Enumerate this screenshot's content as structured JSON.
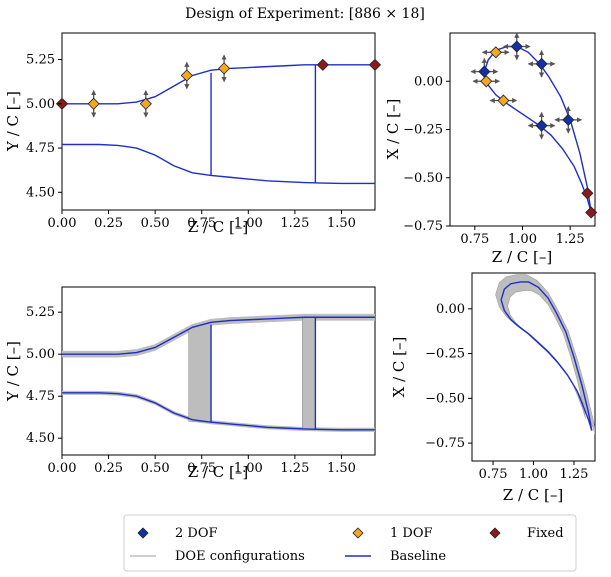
{
  "figure": {
    "title": "Design of Experiment: [886 × 18]"
  },
  "colors": {
    "baseline": "#1f2fc4",
    "doe": "#bdbdbd",
    "two_dof": "#1230a8",
    "one_dof": "#f5a623",
    "fixed": "#8b1a1a",
    "arrow": "#555555"
  },
  "legend": {
    "items": [
      {
        "label": "2 DOF",
        "kind": "diamond",
        "color": "#1230a8"
      },
      {
        "label": "1 DOF",
        "kind": "diamond",
        "color": "#f5a623"
      },
      {
        "label": "Fixed",
        "kind": "diamond",
        "color": "#8b1a1a"
      },
      {
        "label": "DOE configurations",
        "kind": "line",
        "color": "#bdbdbd"
      },
      {
        "label": "Baseline",
        "kind": "line",
        "color": "#1f2fc4"
      }
    ]
  },
  "chart_data": [
    {
      "type": "line",
      "panel": "top-left",
      "xlabel": "Z / C [–]",
      "ylabel": "Y / C [–]",
      "xlim": [
        0,
        1.68
      ],
      "ylim": [
        4.4,
        5.4
      ],
      "xticks": [
        "0.00",
        "0.25",
        "0.50",
        "0.75",
        "1.00",
        "1.25",
        "1.50"
      ],
      "yticks": [
        "4.50",
        "4.75",
        "5.00",
        "5.25"
      ],
      "series": [
        {
          "role": "baseline-upper",
          "x": [
            0,
            0.1,
            0.2,
            0.3,
            0.4,
            0.5,
            0.6,
            0.7,
            0.8,
            0.9,
            1.0,
            1.1,
            1.2,
            1.3,
            1.4,
            1.5,
            1.68
          ],
          "y": [
            5.0,
            5.0,
            5.0,
            5.0,
            5.01,
            5.04,
            5.1,
            5.16,
            5.19,
            5.2,
            5.205,
            5.21,
            5.215,
            5.22,
            5.22,
            5.22,
            5.22
          ]
        },
        {
          "role": "baseline-lower",
          "x": [
            0,
            0.1,
            0.2,
            0.3,
            0.4,
            0.5,
            0.6,
            0.7,
            0.8,
            0.9,
            1.0,
            1.1,
            1.2,
            1.3,
            1.4,
            1.5,
            1.68
          ],
          "y": [
            4.77,
            4.77,
            4.77,
            4.765,
            4.75,
            4.71,
            4.65,
            4.61,
            4.595,
            4.585,
            4.575,
            4.565,
            4.56,
            4.555,
            4.552,
            4.55,
            4.55
          ]
        },
        {
          "role": "baseline-vline",
          "x": [
            0.8,
            0.8
          ],
          "y": [
            4.595,
            5.175
          ]
        },
        {
          "role": "baseline-vline",
          "x": [
            1.36,
            1.36
          ],
          "y": [
            4.553,
            5.22
          ]
        }
      ],
      "control_points": [
        {
          "x": 0.0,
          "y": 5.0,
          "dof": "fixed"
        },
        {
          "x": 0.17,
          "y": 5.0,
          "dof": "1"
        },
        {
          "x": 0.45,
          "y": 5.0,
          "dof": "1"
        },
        {
          "x": 0.67,
          "y": 5.16,
          "dof": "1"
        },
        {
          "x": 0.87,
          "y": 5.2,
          "dof": "1"
        },
        {
          "x": 1.4,
          "y": 5.22,
          "dof": "fixed"
        },
        {
          "x": 1.68,
          "y": 5.22,
          "dof": "fixed"
        }
      ]
    },
    {
      "type": "line",
      "panel": "top-right",
      "xlabel": "Z / C [–]",
      "ylabel": "X / C [–]",
      "xlim": [
        0.62,
        1.38
      ],
      "ylim": [
        -0.75,
        0.25
      ],
      "xticks": [
        "0.75",
        "1.00",
        "1.25"
      ],
      "yticks": [
        "0.00",
        "-0.25",
        "-0.50",
        "-0.75"
      ],
      "series": [
        {
          "role": "baseline-suction",
          "x": [
            0.8,
            0.82,
            0.86,
            0.92,
            0.97,
            1.03,
            1.09,
            1.14,
            1.2,
            1.25,
            1.3,
            1.34,
            1.36
          ],
          "y": [
            0.05,
            0.11,
            0.16,
            0.18,
            0.18,
            0.15,
            0.09,
            0.02,
            -0.08,
            -0.2,
            -0.37,
            -0.55,
            -0.68
          ]
        },
        {
          "role": "baseline-pressure",
          "x": [
            0.8,
            0.82,
            0.86,
            0.91,
            0.97,
            1.03,
            1.09,
            1.15,
            1.21,
            1.27,
            1.31,
            1.34,
            1.36
          ],
          "y": [
            0.05,
            -0.02,
            -0.07,
            -0.11,
            -0.15,
            -0.19,
            -0.23,
            -0.28,
            -0.35,
            -0.44,
            -0.53,
            -0.61,
            -0.68
          ]
        }
      ],
      "control_points": [
        {
          "x": 0.8,
          "y": 0.05,
          "dof": "2"
        },
        {
          "x": 0.81,
          "y": 0.0,
          "dof": "1"
        },
        {
          "x": 0.86,
          "y": 0.15,
          "dof": "1"
        },
        {
          "x": 0.97,
          "y": 0.18,
          "dof": "2"
        },
        {
          "x": 1.1,
          "y": 0.09,
          "dof": "2"
        },
        {
          "x": 0.9,
          "y": -0.1,
          "dof": "1"
        },
        {
          "x": 1.1,
          "y": -0.23,
          "dof": "2"
        },
        {
          "x": 1.24,
          "y": -0.2,
          "dof": "2"
        },
        {
          "x": 1.34,
          "y": -0.58,
          "dof": "fixed"
        },
        {
          "x": 1.36,
          "y": -0.68,
          "dof": "fixed"
        }
      ]
    },
    {
      "type": "line",
      "panel": "bottom-left",
      "xlabel": "Z / C [–]",
      "ylabel": "Y / C [–]",
      "xlim": [
        0,
        1.68
      ],
      "ylim": [
        4.4,
        5.4
      ],
      "xticks": [
        "0.00",
        "0.25",
        "0.50",
        "0.75",
        "1.00",
        "1.25",
        "1.50"
      ],
      "yticks": [
        "4.50",
        "4.75",
        "5.00",
        "5.25"
      ],
      "series": [
        {
          "role": "baseline-upper",
          "x": [
            0,
            0.1,
            0.2,
            0.3,
            0.4,
            0.5,
            0.6,
            0.7,
            0.8,
            0.9,
            1.0,
            1.1,
            1.2,
            1.3,
            1.4,
            1.5,
            1.68
          ],
          "y": [
            5.0,
            5.0,
            5.0,
            5.0,
            5.01,
            5.04,
            5.1,
            5.16,
            5.19,
            5.2,
            5.205,
            5.21,
            5.215,
            5.22,
            5.22,
            5.22,
            5.22
          ]
        },
        {
          "role": "baseline-lower",
          "x": [
            0,
            0.1,
            0.2,
            0.3,
            0.4,
            0.5,
            0.6,
            0.7,
            0.8,
            0.9,
            1.0,
            1.1,
            1.2,
            1.3,
            1.4,
            1.5,
            1.68
          ],
          "y": [
            4.77,
            4.77,
            4.77,
            4.765,
            4.75,
            4.71,
            4.65,
            4.61,
            4.595,
            4.585,
            4.575,
            4.565,
            4.56,
            4.555,
            4.552,
            4.55,
            4.55
          ]
        },
        {
          "role": "baseline-vline",
          "x": [
            0.8,
            0.8
          ],
          "y": [
            4.595,
            5.175
          ]
        },
        {
          "role": "baseline-vline",
          "x": [
            1.36,
            1.36
          ],
          "y": [
            4.553,
            5.22
          ]
        }
      ],
      "doe_band": [
        {
          "x_range": [
            0.68,
            0.8
          ],
          "y_bottom": [
            4.6,
            4.595
          ],
          "y_top": [
            5.15,
            5.19
          ]
        },
        {
          "x_range": [
            1.29,
            1.36
          ],
          "y_bottom": [
            4.555,
            4.553
          ],
          "y_top": [
            5.215,
            5.22
          ]
        }
      ]
    },
    {
      "type": "line",
      "panel": "bottom-right",
      "xlabel": "Z / C [–]",
      "ylabel": "X / C [–]",
      "xlim": [
        0.62,
        1.38
      ],
      "ylim": [
        -0.85,
        0.2
      ],
      "xticks": [
        "0.75",
        "1.00",
        "1.25"
      ],
      "yticks": [
        "0.00",
        "-0.25",
        "-0.50",
        "-0.75"
      ],
      "series": [
        {
          "role": "baseline-suction",
          "x": [
            0.8,
            0.82,
            0.86,
            0.92,
            0.97,
            1.03,
            1.09,
            1.14,
            1.2,
            1.25,
            1.3,
            1.34,
            1.36
          ],
          "y": [
            0.05,
            0.11,
            0.14,
            0.15,
            0.15,
            0.12,
            0.06,
            -0.02,
            -0.13,
            -0.27,
            -0.43,
            -0.58,
            -0.68
          ]
        },
        {
          "role": "baseline-pressure",
          "x": [
            0.8,
            0.82,
            0.86,
            0.91,
            0.97,
            1.03,
            1.09,
            1.15,
            1.21,
            1.27,
            1.31,
            1.34,
            1.36
          ],
          "y": [
            0.05,
            -0.01,
            -0.06,
            -0.1,
            -0.14,
            -0.19,
            -0.24,
            -0.3,
            -0.37,
            -0.46,
            -0.55,
            -0.62,
            -0.68
          ]
        }
      ]
    }
  ]
}
